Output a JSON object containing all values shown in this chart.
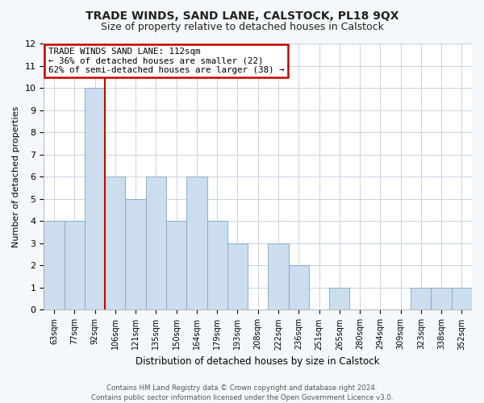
{
  "title": "TRADE WINDS, SAND LANE, CALSTOCK, PL18 9QX",
  "subtitle": "Size of property relative to detached houses in Calstock",
  "xlabel": "Distribution of detached houses by size in Calstock",
  "ylabel": "Number of detached properties",
  "bin_labels": [
    "63sqm",
    "77sqm",
    "92sqm",
    "106sqm",
    "121sqm",
    "135sqm",
    "150sqm",
    "164sqm",
    "179sqm",
    "193sqm",
    "208sqm",
    "222sqm",
    "236sqm",
    "251sqm",
    "265sqm",
    "280sqm",
    "294sqm",
    "309sqm",
    "323sqm",
    "338sqm",
    "352sqm"
  ],
  "bar_heights": [
    4,
    4,
    10,
    6,
    5,
    6,
    4,
    6,
    4,
    3,
    0,
    3,
    2,
    0,
    1,
    0,
    0,
    0,
    1,
    1,
    1
  ],
  "bar_color": "#ccdded",
  "bar_edge_color": "#7aaac8",
  "vline_x_idx": 3,
  "vline_color": "#cc0000",
  "ylim": [
    0,
    12
  ],
  "yticks": [
    0,
    1,
    2,
    3,
    4,
    5,
    6,
    7,
    8,
    9,
    10,
    11,
    12
  ],
  "annotation_title": "TRADE WINDS SAND LANE: 112sqm",
  "annotation_line1": "← 36% of detached houses are smaller (22)",
  "annotation_line2": "62% of semi-detached houses are larger (38) →",
  "annotation_box_color": "#ffffff",
  "annotation_box_edge": "#cc0000",
  "grid_color": "#c8d4e0",
  "plot_bg_color": "#ffffff",
  "fig_bg_color": "#f5f8fa",
  "footer1": "Contains HM Land Registry data © Crown copyright and database right 2024.",
  "footer2": "Contains public sector information licensed under the Open Government Licence v3.0."
}
